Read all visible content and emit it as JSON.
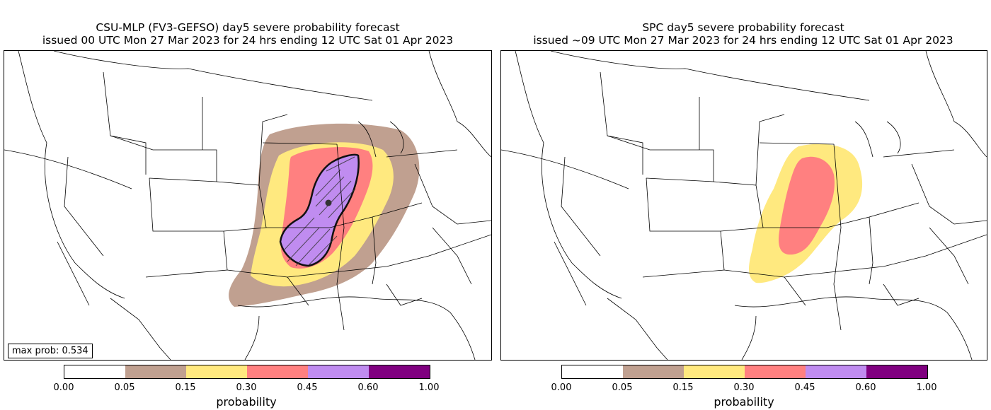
{
  "left_panel": {
    "title_line1": "CSU-MLP (FV3-GEFSO) day5 severe probability forecast",
    "title_line2": "issued 00 UTC Mon 27 Mar 2023 for 24 hrs ending 12 UTC Sat 01 Apr 2023",
    "max_prob_label": "max prob: 0.534"
  },
  "right_panel": {
    "title_line1": "SPC day5 severe probability forecast",
    "title_line2": "issued ~09 UTC Mon 27 Mar 2023 for 24 hrs ending 12 UTC Sat 01 Apr 2023"
  },
  "colorbar": {
    "label": "probability",
    "ticks": [
      "0.00",
      "0.05",
      "0.15",
      "0.30",
      "0.45",
      "0.60",
      "1.00"
    ],
    "colors": [
      "#ffffff",
      "#c0a090",
      "#ffe97f",
      "#ff8080",
      "#c08cf0",
      "#800080"
    ]
  },
  "probability_colors": {
    "p05": "#c0a090",
    "p15": "#ffe97f",
    "p30": "#ff8080",
    "p45": "#c08cf0"
  }
}
